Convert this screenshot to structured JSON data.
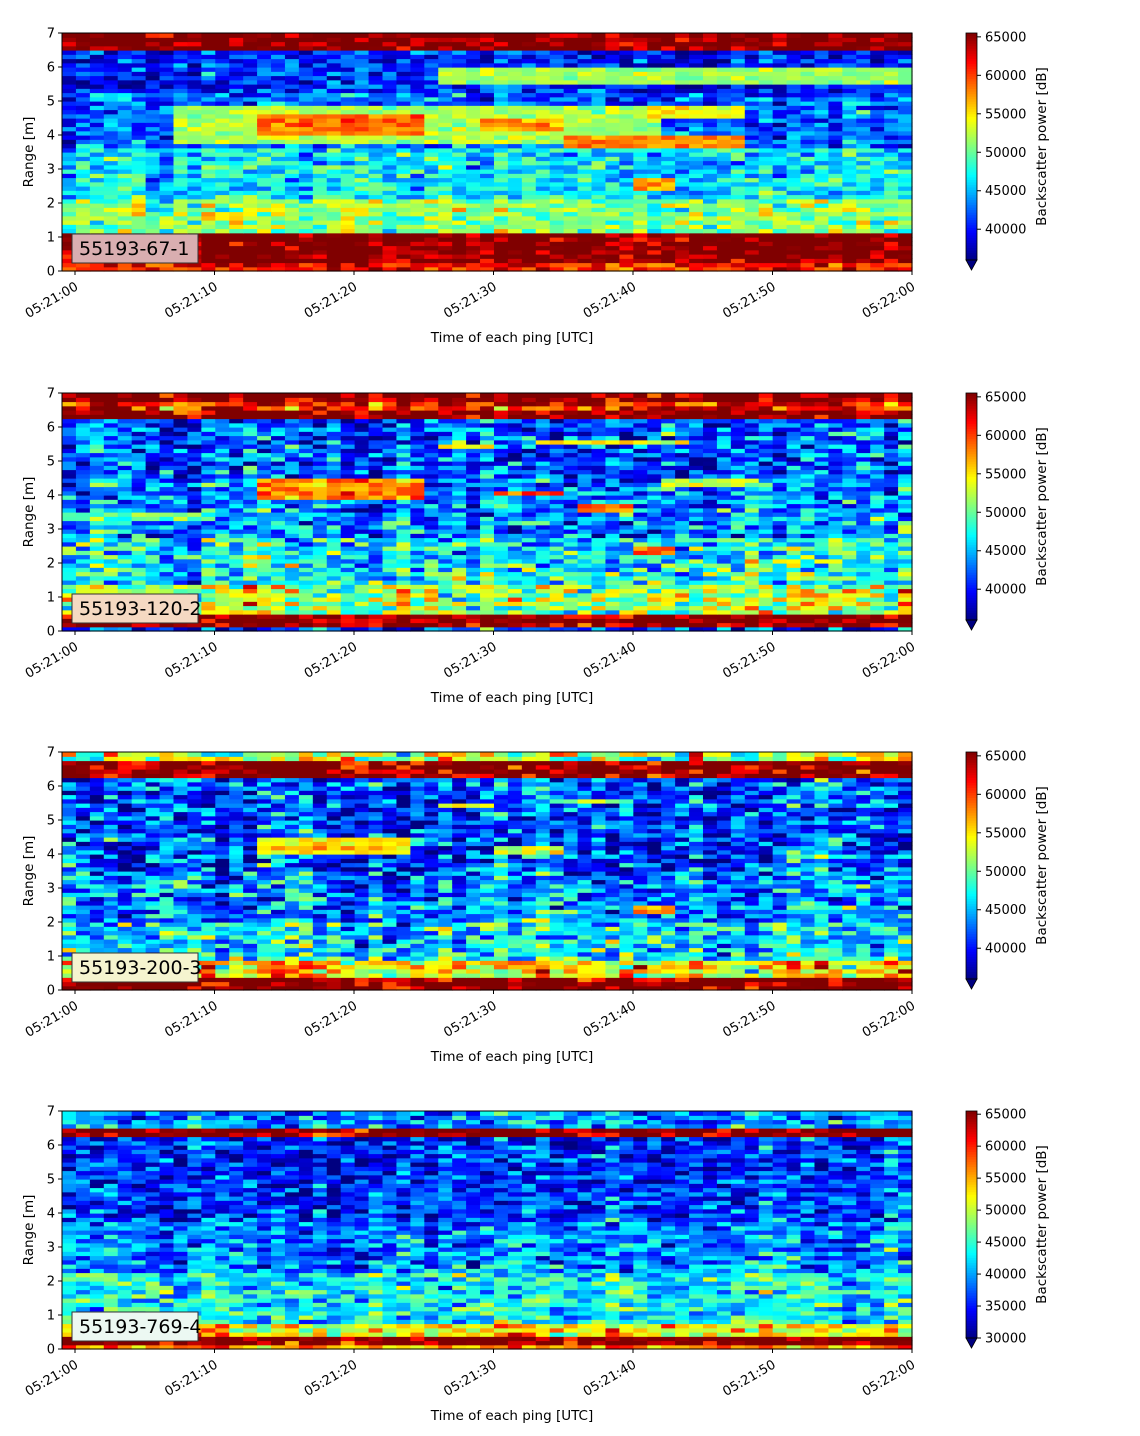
{
  "figure": {
    "background": "#ffffff"
  },
  "chart_data": [
    {
      "type": "heatmap",
      "label": "55193-67-1",
      "label_bg": "#d9aeb0",
      "xlabel": "Time of each ping [UTC]",
      "ylabel": "Range [m]",
      "colorbar_label": "Backscatter power [dB]",
      "colormap": "jet",
      "colorbar_extend": "min",
      "x_ticks": [
        "05:21:00",
        "05:21:10",
        "05:21:20",
        "05:21:30",
        "05:21:40",
        "05:21:50",
        "05:22:00"
      ],
      "y_ticks": [
        0,
        1,
        2,
        3,
        4,
        5,
        6,
        7
      ],
      "ylim": [
        0,
        7
      ],
      "color_range": [
        36000,
        65500
      ],
      "colorbar_ticks": [
        40000,
        45000,
        50000,
        55000,
        60000,
        65000
      ],
      "noise": 2600,
      "layers": [
        {
          "y0": 0.0,
          "y1": 0.25,
          "level": 61000
        },
        {
          "y0": 0.25,
          "y1": 1.15,
          "level": 66000
        },
        {
          "y0": 1.15,
          "y1": 2.1,
          "level": 51000
        },
        {
          "y0": 2.1,
          "y1": 3.6,
          "level": 46500
        },
        {
          "y0": 3.6,
          "y1": 5.3,
          "level": 42500
        },
        {
          "y0": 5.3,
          "y1": 6.45,
          "level": 40500
        },
        {
          "y0": 6.45,
          "y1": 7.0,
          "level": 66000
        }
      ],
      "features": [
        {
          "x0": 8,
          "x1": 42,
          "y0": 3.7,
          "y1": 4.9,
          "level": 52000
        },
        {
          "x0": 14,
          "x1": 25,
          "y0": 4.0,
          "y1": 4.6,
          "level": 58500
        },
        {
          "x0": 30,
          "x1": 35,
          "y0": 4.1,
          "y1": 4.5,
          "level": 57500
        },
        {
          "x0": 36,
          "x1": 48,
          "y0": 3.6,
          "y1": 4.0,
          "level": 58000
        },
        {
          "x0": 42,
          "x1": 48,
          "y0": 4.5,
          "y1": 4.9,
          "level": 54500
        },
        {
          "x0": 27,
          "x1": 61,
          "y0": 5.55,
          "y1": 5.95,
          "level": 51500
        },
        {
          "x0": 41,
          "x1": 43,
          "y0": 2.4,
          "y1": 2.8,
          "level": 57500
        },
        {
          "x0": 10,
          "x1": 12,
          "y0": 1.5,
          "y1": 1.8,
          "level": 56500
        }
      ]
    },
    {
      "type": "heatmap",
      "label": "55193-120-2",
      "label_bg": "#f5d9c2",
      "xlabel": "Time of each ping [UTC]",
      "ylabel": "Range [m]",
      "colorbar_label": "Backscatter power [dB]",
      "colormap": "jet",
      "colorbar_extend": "min",
      "x_ticks": [
        "05:21:00",
        "05:21:10",
        "05:21:20",
        "05:21:30",
        "05:21:40",
        "05:21:50",
        "05:22:00"
      ],
      "y_ticks": [
        0,
        1,
        2,
        3,
        4,
        5,
        6,
        7
      ],
      "ylim": [
        0,
        7
      ],
      "color_range": [
        36000,
        65500
      ],
      "colorbar_ticks": [
        40000,
        45000,
        50000,
        55000,
        60000,
        65000
      ],
      "noise": 3600,
      "layers": [
        {
          "y0": 0.0,
          "y1": 0.15,
          "level": 41000
        },
        {
          "y0": 0.15,
          "y1": 0.55,
          "level": 66000
        },
        {
          "y0": 0.55,
          "y1": 1.4,
          "level": 52000
        },
        {
          "y0": 1.4,
          "y1": 2.8,
          "level": 47000
        },
        {
          "y0": 2.8,
          "y1": 4.5,
          "level": 43500
        },
        {
          "y0": 4.5,
          "y1": 6.2,
          "level": 42000
        },
        {
          "y0": 6.2,
          "y1": 6.5,
          "level": 66000
        },
        {
          "y0": 6.5,
          "y1": 6.8,
          "level": 61000
        },
        {
          "y0": 6.8,
          "y1": 7.0,
          "level": 66000
        }
      ],
      "features": [
        {
          "x0": 14,
          "x1": 25,
          "y0": 3.9,
          "y1": 4.5,
          "level": 58000
        },
        {
          "x0": 31,
          "x1": 35,
          "y0": 3.95,
          "y1": 4.15,
          "level": 60000
        },
        {
          "x0": 27,
          "x1": 30,
          "y0": 5.35,
          "y1": 5.55,
          "level": 57000
        },
        {
          "x0": 34,
          "x1": 44,
          "y0": 5.45,
          "y1": 5.65,
          "level": 55000
        },
        {
          "x0": 37,
          "x1": 40,
          "y0": 3.45,
          "y1": 3.7,
          "level": 59000
        },
        {
          "x0": 41,
          "x1": 43,
          "y0": 2.3,
          "y1": 2.5,
          "level": 60000
        },
        {
          "x0": 43,
          "x1": 49,
          "y0": 4.2,
          "y1": 4.45,
          "level": 53500
        },
        {
          "x0": 0,
          "x1": 10,
          "y0": 3.2,
          "y1": 3.45,
          "level": 50000
        }
      ]
    },
    {
      "type": "heatmap",
      "label": "55193-200-3",
      "label_bg": "#f5f4cf",
      "xlabel": "Time of each ping [UTC]",
      "ylabel": "Range [m]",
      "colorbar_label": "Backscatter power [dB]",
      "colormap": "jet",
      "colorbar_extend": "min",
      "x_ticks": [
        "05:21:00",
        "05:21:10",
        "05:21:20",
        "05:21:30",
        "05:21:40",
        "05:21:50",
        "05:22:00"
      ],
      "y_ticks": [
        0,
        1,
        2,
        3,
        4,
        5,
        6,
        7
      ],
      "ylim": [
        0,
        7
      ],
      "color_range": [
        36000,
        65500
      ],
      "colorbar_ticks": [
        40000,
        45000,
        50000,
        55000,
        60000,
        65000
      ],
      "noise": 3800,
      "layers": [
        {
          "y0": 0.0,
          "y1": 0.35,
          "level": 66000
        },
        {
          "y0": 0.35,
          "y1": 0.85,
          "level": 55000
        },
        {
          "y0": 0.85,
          "y1": 2.0,
          "level": 46500
        },
        {
          "y0": 2.0,
          "y1": 3.5,
          "level": 43500
        },
        {
          "y0": 3.5,
          "y1": 6.25,
          "level": 41500
        },
        {
          "y0": 6.25,
          "y1": 6.7,
          "level": 66000
        },
        {
          "y0": 6.7,
          "y1": 7.0,
          "level": 52000
        }
      ],
      "features": [
        {
          "x0": 14,
          "x1": 24,
          "y0": 3.95,
          "y1": 4.45,
          "level": 55000
        },
        {
          "x0": 27,
          "x1": 30,
          "y0": 5.35,
          "y1": 5.55,
          "level": 54000
        },
        {
          "x0": 35,
          "x1": 40,
          "y0": 5.45,
          "y1": 5.65,
          "level": 52000
        },
        {
          "x0": 31,
          "x1": 35,
          "y0": 4.0,
          "y1": 4.2,
          "level": 54000
        },
        {
          "x0": 41,
          "x1": 43,
          "y0": 2.3,
          "y1": 2.5,
          "level": 57000
        }
      ]
    },
    {
      "type": "heatmap",
      "label": "55193-769-4",
      "label_bg": "#ecf8f2",
      "xlabel": "Time of each ping [UTC]",
      "ylabel": "Range [m]",
      "colorbar_label": "Backscatter power [dB]",
      "colormap": "jet",
      "colorbar_extend": "min",
      "x_ticks": [
        "05:21:00",
        "05:21:10",
        "05:21:20",
        "05:21:30",
        "05:21:40",
        "05:21:50",
        "05:22:00"
      ],
      "y_ticks": [
        0,
        1,
        2,
        3,
        4,
        5,
        6,
        7
      ],
      "ylim": [
        0,
        7
      ],
      "color_range": [
        30000,
        65500
      ],
      "colorbar_ticks": [
        30000,
        35000,
        40000,
        45000,
        50000,
        55000,
        60000,
        65000
      ],
      "noise": 3800,
      "layers": [
        {
          "y0": 0.0,
          "y1": 0.12,
          "level": 56000
        },
        {
          "y0": 0.12,
          "y1": 0.35,
          "level": 66000
        },
        {
          "y0": 0.35,
          "y1": 0.75,
          "level": 52000
        },
        {
          "y0": 0.75,
          "y1": 2.2,
          "level": 43000
        },
        {
          "y0": 2.2,
          "y1": 3.8,
          "level": 38500
        },
        {
          "y0": 3.8,
          "y1": 6.3,
          "level": 35500
        },
        {
          "y0": 6.3,
          "y1": 6.55,
          "level": 66000
        },
        {
          "y0": 6.55,
          "y1": 7.0,
          "level": 39000
        }
      ],
      "features": []
    }
  ]
}
